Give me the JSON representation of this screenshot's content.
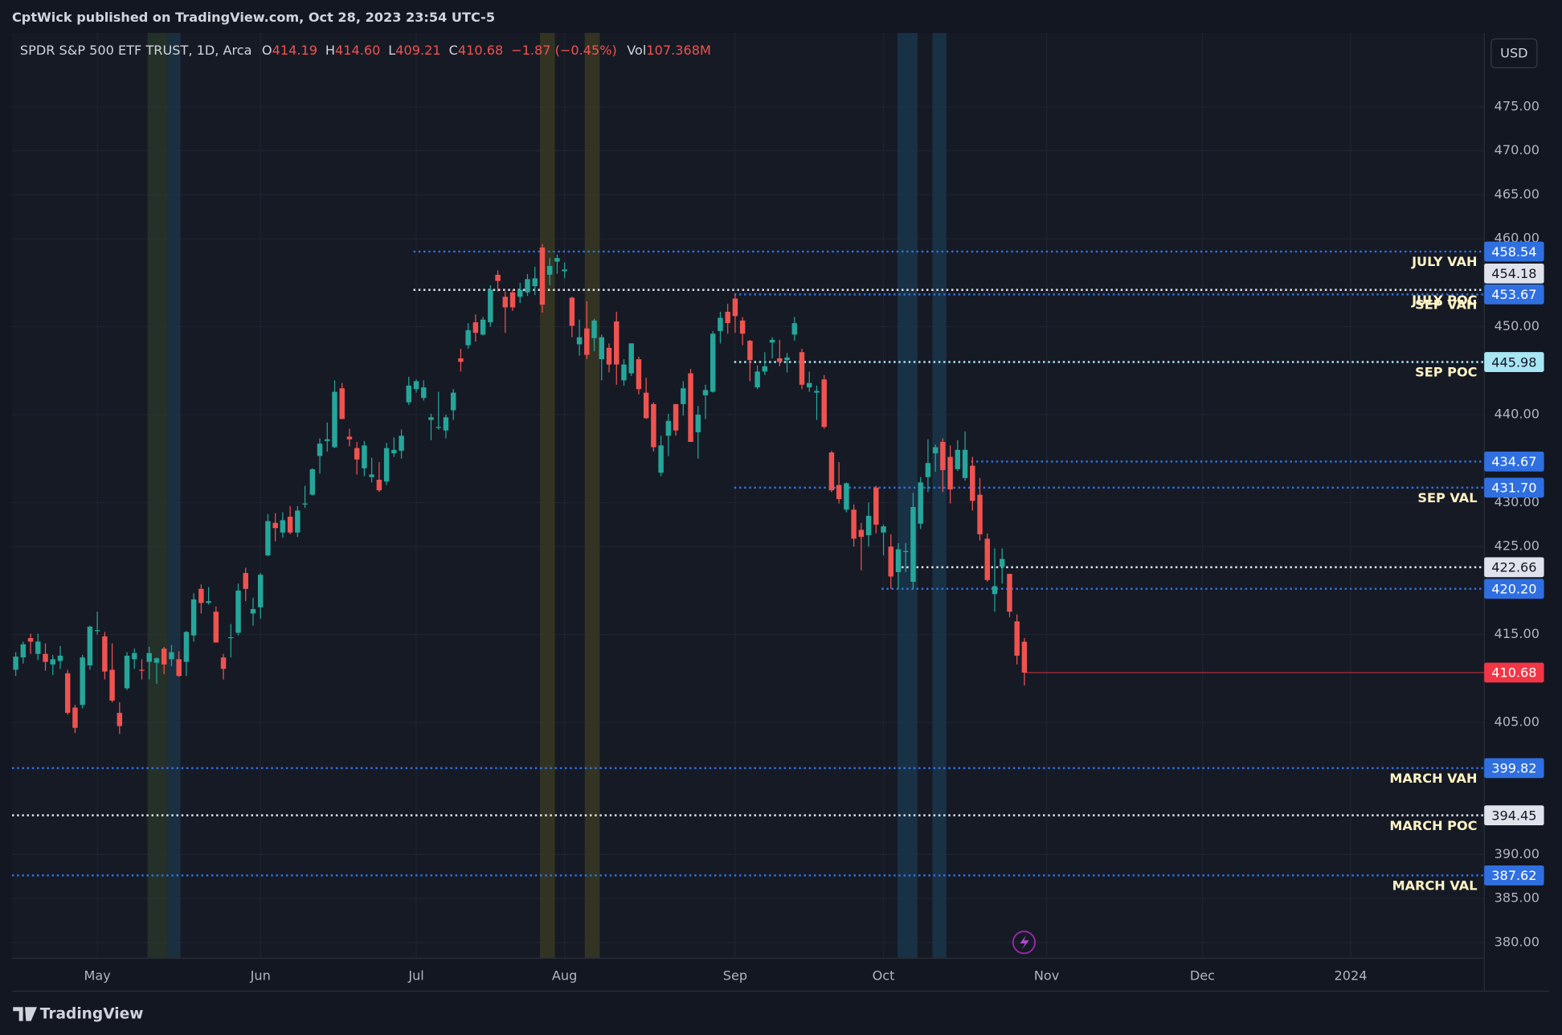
{
  "header": "CptWick published on TradingView.com, Oct 28, 2023 23:54 UTC-5",
  "brand": "TradingView",
  "chart_data": {
    "type": "candlestick",
    "legend": {
      "symbol": "SPDR S&P 500 ETF TRUST, 1D, Arca",
      "fields": [
        {
          "key": "O",
          "value": 414.19
        },
        {
          "key": "H",
          "value": 414.6,
          "label": "414.60"
        },
        {
          "key": "L",
          "value": 409.21
        },
        {
          "key": "C",
          "value": 410.68
        }
      ],
      "change": "−1.87 (−0.45%)",
      "volume_key": "Vol",
      "volume": "107.368M"
    },
    "currency": "USD",
    "up_color": "#26a69a",
    "down_color": "#ef5350",
    "grid": true,
    "xlim": [
      -0.5,
      198
    ],
    "xticks": [
      {
        "value": 11,
        "label": "May"
      },
      {
        "value": 33,
        "label": "Jun"
      },
      {
        "value": 54,
        "label": "Jul"
      },
      {
        "value": 74,
        "label": "Aug"
      },
      {
        "value": 97,
        "label": "Sep"
      },
      {
        "value": 117,
        "label": "Oct"
      },
      {
        "value": 139,
        "label": "Nov"
      },
      {
        "value": 160,
        "label": "Dec"
      },
      {
        "value": 180,
        "label": "2024"
      }
    ],
    "ylim": [
      378.2,
      483.4
    ],
    "yticks": [
      {
        "value": 380,
        "label": "380.00"
      },
      {
        "value": 385,
        "label": "385.00"
      },
      {
        "value": 390,
        "label": "390.00"
      },
      {
        "value": 405,
        "label": "405.00"
      },
      {
        "value": 415,
        "label": "415.00"
      },
      {
        "value": 425,
        "label": "425.00"
      },
      {
        "value": 430,
        "label": "430.00"
      },
      {
        "value": 440,
        "label": "440.00"
      },
      {
        "value": 450,
        "label": "450.00"
      },
      {
        "value": 460,
        "label": "460.00"
      },
      {
        "value": 465,
        "label": "465.00"
      },
      {
        "value": 470,
        "label": "470.00"
      },
      {
        "value": 475,
        "label": "475.00"
      }
    ],
    "levels": [
      {
        "value": 458.54,
        "label": "458.54",
        "note": "JULY VAH",
        "color": "#2f6fe0",
        "dash": "dotted"
      },
      {
        "value": 454.18,
        "label": "454.18",
        "note": "JULY POC",
        "color": "#e0e3eb",
        "dash": "dotted"
      },
      {
        "value": 453.67,
        "label": "453.67",
        "note": "SEP VAH",
        "color": "#2f6fe0",
        "dash": "dotted"
      },
      {
        "value": 445.98,
        "label": "445.98",
        "note": "SEP POC",
        "color": "#a8e6f4",
        "dash": "dotted"
      },
      {
        "value": 434.67,
        "label": "434.67",
        "color": "#2f6fe0",
        "dash": "dotted"
      },
      {
        "value": 431.7,
        "label": "431.70",
        "note": "SEP VAL",
        "color": "#2f6fe0",
        "dash": "dotted"
      },
      {
        "value": 422.66,
        "label": "422.66",
        "color": "#e0e3eb",
        "dash": "dotted"
      },
      {
        "value": 420.2,
        "label": "420.20",
        "color": "#2f6fe0",
        "dash": "dotted"
      },
      {
        "value": 410.68,
        "label": "410.68",
        "color": "#f23645",
        "dash": "solid"
      },
      {
        "value": 399.82,
        "label": "399.82",
        "note": "MARCH VAH",
        "color": "#2f6fe0",
        "dash": "dotted"
      },
      {
        "value": 394.45,
        "label": "394.45",
        "note": "MARCH POC",
        "color": "#e0e3eb",
        "dash": "dotted"
      },
      {
        "value": 387.62,
        "label": "387.62",
        "note": "MARCH VAL",
        "color": "#2f6fe0",
        "dash": "dotted"
      }
    ],
    "candles": [
      [
        411.0,
        413.0,
        410.3,
        412.5
      ],
      [
        412.4,
        414.2,
        411.7,
        413.9
      ],
      [
        414.6,
        415.1,
        412.8,
        414.2
      ],
      [
        412.8,
        415.1,
        412.1,
        414.2
      ],
      [
        412.8,
        414.0,
        410.9,
        411.9
      ],
      [
        411.6,
        412.7,
        410.4,
        412.2
      ],
      [
        412.0,
        413.7,
        411.1,
        412.6
      ],
      [
        410.6,
        411.0,
        405.9,
        406.1
      ],
      [
        406.7,
        407.0,
        403.8,
        404.4
      ],
      [
        407.0,
        412.7,
        406.6,
        412.4
      ],
      [
        411.5,
        416.0,
        411.0,
        415.9
      ],
      [
        415.5,
        417.6,
        415.0,
        415.5
      ],
      [
        414.8,
        415.3,
        409.9,
        410.8
      ],
      [
        411.0,
        414.0,
        407.3,
        407.5
      ],
      [
        406.1,
        407.3,
        403.7,
        404.6
      ],
      [
        408.9,
        413.0,
        408.7,
        412.6
      ],
      [
        412.2,
        413.4,
        411.1,
        412.9
      ],
      [
        411.0,
        412.2,
        409.9,
        410.9
      ],
      [
        411.9,
        413.6,
        409.9,
        412.9
      ],
      [
        411.8,
        412.4,
        409.4,
        412.3
      ],
      [
        413.4,
        413.6,
        410.5,
        411.6
      ],
      [
        412.2,
        413.8,
        411.4,
        413.0
      ],
      [
        412.2,
        413.1,
        410.2,
        410.3
      ],
      [
        411.9,
        415.4,
        410.3,
        415.3
      ],
      [
        414.9,
        419.7,
        414.2,
        419.0
      ],
      [
        420.2,
        420.7,
        417.4,
        418.6
      ],
      [
        418.6,
        420.4,
        418.4,
        418.8
      ],
      [
        417.6,
        418.2,
        414.1,
        414.1
      ],
      [
        412.4,
        412.8,
        409.9,
        411.1
      ],
      [
        414.7,
        416.2,
        412.4,
        414.7
      ],
      [
        415.2,
        420.8,
        414.9,
        420.0
      ],
      [
        422.0,
        422.6,
        418.8,
        420.2
      ],
      [
        417.4,
        419.2,
        416.0,
        417.9
      ],
      [
        418.1,
        422.0,
        416.8,
        421.8
      ],
      [
        424.0,
        428.7,
        423.9,
        427.9
      ],
      [
        427.7,
        428.8,
        425.6,
        427.1
      ],
      [
        426.6,
        428.9,
        426.0,
        428.0
      ],
      [
        428.4,
        429.6,
        426.4,
        426.6
      ],
      [
        426.6,
        429.6,
        426.1,
        429.1
      ],
      [
        429.9,
        431.9,
        429.4,
        429.9
      ],
      [
        430.9,
        433.9,
        430.8,
        433.8
      ],
      [
        435.3,
        437.3,
        433.3,
        436.7
      ],
      [
        437.0,
        439.1,
        435.8,
        437.2
      ],
      [
        436.3,
        443.9,
        436.2,
        442.6
      ],
      [
        443.0,
        443.6,
        439.5,
        439.5
      ],
      [
        437.5,
        438.4,
        436.4,
        437.2
      ],
      [
        436.2,
        436.9,
        433.2,
        434.9
      ],
      [
        433.9,
        437.0,
        433.0,
        436.5
      ],
      [
        432.9,
        435.1,
        432.3,
        433.2
      ],
      [
        432.6,
        434.6,
        431.2,
        431.4
      ],
      [
        432.4,
        436.8,
        432.0,
        436.2
      ],
      [
        435.6,
        437.4,
        435.2,
        436.0
      ],
      [
        435.9,
        438.3,
        435.0,
        437.6
      ],
      [
        441.4,
        444.3,
        441.1,
        443.3
      ],
      [
        442.9,
        444.0,
        442.5,
        443.8
      ],
      [
        441.9,
        443.9,
        441.6,
        443.1
      ],
      [
        439.4,
        440.1,
        437.1,
        439.7
      ],
      [
        438.6,
        442.6,
        438.3,
        438.6
      ],
      [
        438.2,
        440.0,
        437.3,
        439.7
      ],
      [
        440.5,
        442.9,
        439.4,
        442.5
      ],
      [
        446.4,
        447.5,
        444.9,
        446.0
      ],
      [
        447.9,
        450.4,
        447.5,
        449.6
      ],
      [
        450.5,
        451.4,
        448.3,
        449.3
      ],
      [
        449.1,
        451.1,
        449.0,
        450.8
      ],
      [
        450.5,
        454.7,
        450.0,
        454.2
      ],
      [
        455.9,
        456.4,
        454.0,
        455.2
      ],
      [
        453.4,
        454.0,
        449.3,
        452.2
      ],
      [
        453.9,
        454.2,
        451.8,
        452.2
      ],
      [
        453.4,
        455.0,
        452.7,
        454.2
      ],
      [
        453.9,
        456.0,
        453.5,
        455.4
      ],
      [
        454.6,
        456.8,
        453.6,
        455.5
      ],
      [
        459.0,
        459.4,
        451.6,
        452.5
      ],
      [
        455.9,
        457.8,
        454.7,
        456.9
      ],
      [
        457.4,
        458.2,
        456.0,
        457.8
      ],
      [
        456.3,
        457.3,
        455.5,
        456.5
      ],
      [
        453.3,
        453.4,
        448.8,
        450.1
      ],
      [
        448.0,
        450.8,
        446.7,
        448.8
      ],
      [
        449.8,
        452.9,
        446.3,
        446.8
      ],
      [
        448.7,
        450.9,
        447.2,
        450.7
      ],
      [
        446.3,
        449.1,
        443.9,
        448.8
      ],
      [
        447.6,
        448.1,
        444.8,
        445.7
      ],
      [
        450.6,
        451.7,
        443.4,
        445.7
      ],
      [
        443.9,
        446.3,
        443.3,
        445.7
      ],
      [
        444.7,
        448.1,
        444.4,
        448.1
      ],
      [
        446.3,
        446.6,
        442.3,
        442.9
      ],
      [
        442.5,
        444.2,
        439.5,
        439.6
      ],
      [
        441.2,
        441.4,
        435.8,
        436.3
      ],
      [
        433.4,
        437.6,
        433.0,
        436.5
      ],
      [
        437.6,
        440.1,
        435.3,
        439.3
      ],
      [
        441.2,
        441.2,
        437.6,
        438.2
      ],
      [
        441.2,
        443.8,
        439.9,
        443.0
      ],
      [
        444.7,
        445.2,
        436.9,
        436.9
      ],
      [
        438.0,
        441.0,
        435.0,
        440.0
      ],
      [
        442.2,
        443.4,
        439.5,
        442.8
      ],
      [
        442.6,
        449.5,
        442.5,
        449.2
      ],
      [
        449.5,
        451.7,
        448.1,
        451.0
      ],
      [
        451.7,
        452.6,
        449.2,
        450.4
      ],
      [
        453.2,
        453.7,
        449.3,
        451.2
      ],
      [
        450.7,
        451.1,
        447.9,
        449.2
      ],
      [
        448.4,
        448.5,
        443.8,
        446.2
      ],
      [
        443.1,
        445.6,
        442.9,
        444.9
      ],
      [
        444.9,
        447.1,
        444.5,
        445.5
      ],
      [
        448.2,
        448.8,
        446.4,
        448.5
      ],
      [
        446.4,
        448.5,
        445.5,
        446.0
      ],
      [
        446.2,
        447.0,
        444.8,
        446.5
      ],
      [
        449.1,
        451.1,
        448.4,
        450.4
      ],
      [
        447.1,
        447.5,
        442.9,
        443.4
      ],
      [
        443.1,
        444.9,
        442.6,
        443.6
      ],
      [
        442.5,
        443.3,
        439.4,
        442.7
      ],
      [
        444.0,
        444.5,
        438.4,
        438.6
      ],
      [
        435.7,
        435.9,
        431.2,
        431.4
      ],
      [
        432.0,
        434.6,
        429.9,
        430.4
      ],
      [
        429.2,
        432.3,
        428.9,
        432.2
      ],
      [
        429.2,
        429.8,
        425.0,
        425.9
      ],
      [
        426.9,
        427.7,
        422.3,
        426.1
      ],
      [
        426.3,
        430.0,
        425.0,
        428.5
      ],
      [
        431.7,
        431.9,
        426.5,
        427.5
      ],
      [
        426.6,
        427.5,
        424.0,
        427.3
      ],
      [
        425.0,
        426.4,
        420.2,
        421.6
      ],
      [
        422.1,
        425.4,
        420.2,
        424.7
      ],
      [
        424.4,
        425.4,
        422.1,
        424.5
      ],
      [
        421.0,
        431.1,
        420.2,
        429.5
      ],
      [
        427.6,
        432.9,
        427.0,
        432.3
      ],
      [
        432.9,
        437.2,
        431.2,
        434.5
      ],
      [
        435.6,
        436.6,
        433.5,
        436.3
      ],
      [
        436.9,
        437.3,
        431.2,
        433.7
      ],
      [
        435.2,
        436.5,
        429.9,
        431.5
      ],
      [
        433.8,
        437.1,
        433.6,
        436.0
      ],
      [
        432.8,
        438.1,
        432.5,
        436.0
      ],
      [
        434.2,
        435.2,
        429.1,
        430.2
      ],
      [
        430.9,
        432.8,
        425.7,
        426.4
      ],
      [
        425.9,
        426.5,
        421.0,
        421.2
      ],
      [
        419.6,
        424.8,
        417.6,
        420.5
      ],
      [
        422.7,
        424.8,
        420.8,
        423.6
      ],
      [
        421.9,
        421.9,
        417.0,
        417.6
      ],
      [
        416.5,
        417.3,
        411.6,
        412.6
      ],
      [
        414.19,
        414.6,
        409.21,
        410.68
      ]
    ]
  }
}
